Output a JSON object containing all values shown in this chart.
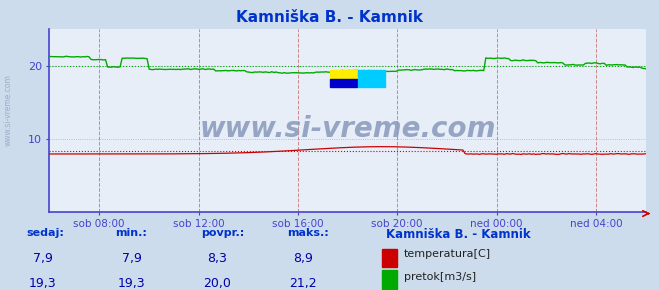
{
  "title": "Kamniška B. - Kamnik",
  "title_color": "#0033cc",
  "bg_color": "#ccdcec",
  "plot_bg_color": "#e8eef8",
  "axis_color": "#4444cc",
  "vgrid_color": "#cc8888",
  "hgrid_color": "#aaaacc",
  "watermark_text": "www.si-vreme.com",
  "watermark_color": "#8899bb",
  "watermark_fontsize": 20,
  "x_tick_labels": [
    "sob 08:00",
    "sob 12:00",
    "sob 16:00",
    "sob 20:00",
    "ned 00:00",
    "ned 04:00"
  ],
  "x_tick_positions": [
    0.083,
    0.25,
    0.417,
    0.583,
    0.75,
    0.917
  ],
  "ylim": [
    0,
    25
  ],
  "yticks": [
    10,
    20
  ],
  "temp_color": "#cc0000",
  "flow_color": "#00aa00",
  "temp_avg": 8.3,
  "flow_avg": 20.0,
  "legend_title": "Kamniška B. - Kamnik",
  "legend_title_color": "#0033cc",
  "stat_label_color": "#0033cc",
  "stat_value_color": "#0000aa",
  "logo_colors": [
    [
      "#ffee00",
      "#00ccff"
    ],
    [
      "#0000cc",
      "#00ccff"
    ]
  ],
  "stats": {
    "headers": [
      "sedaj:",
      "min.:",
      "povpr.:",
      "maks.:"
    ],
    "temp": [
      "7,9",
      "7,9",
      "8,3",
      "8,9"
    ],
    "flow": [
      "19,3",
      "19,3",
      "20,0",
      "21,2"
    ]
  }
}
